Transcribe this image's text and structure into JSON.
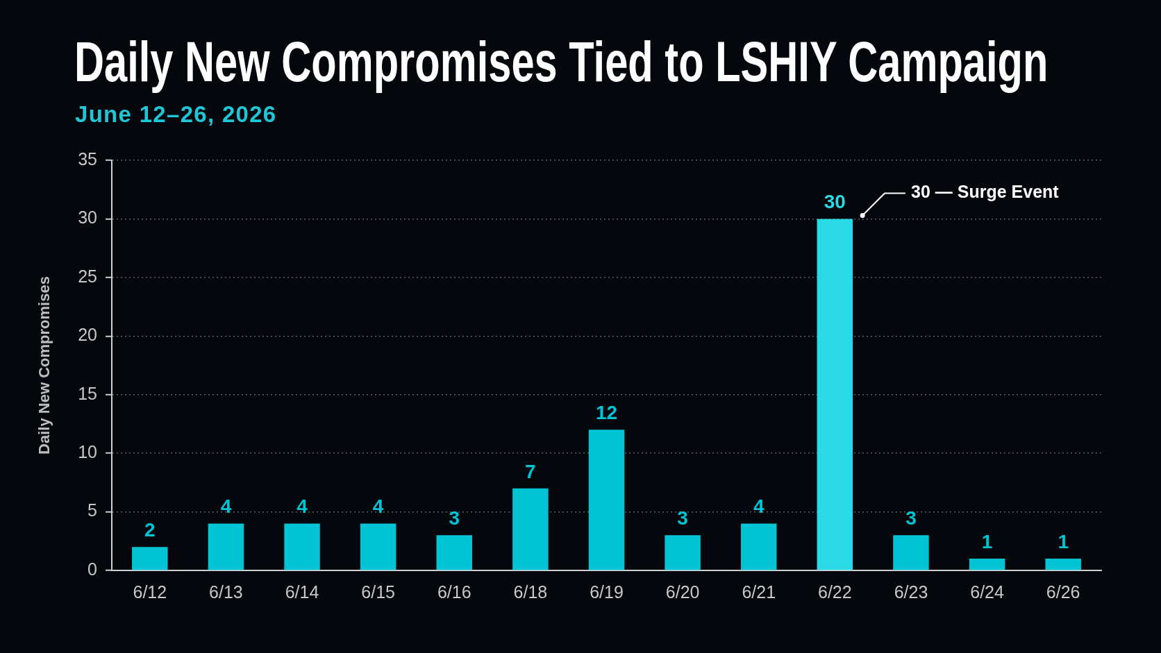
{
  "chart_data": {
    "type": "bar",
    "title": "Daily New Compromises Tied to LSHIY Campaign",
    "subtitle": "June 12–26, 2026",
    "ylabel": "Daily New Compromises",
    "categories": [
      "6/12",
      "6/13",
      "6/14",
      "6/15",
      "6/16",
      "6/18",
      "6/19",
      "6/20",
      "6/21",
      "6/22",
      "6/23",
      "6/24",
      "6/26"
    ],
    "values": [
      2,
      4,
      4,
      4,
      3,
      7,
      12,
      3,
      4,
      30,
      3,
      1,
      1
    ],
    "colors": [
      "#00c4d4",
      "#00c4d4",
      "#00c4d4",
      "#00c4d4",
      "#00c4d4",
      "#00c4d4",
      "#00c4d4",
      "#00c4d4",
      "#00c4d4",
      "#2ad9e6",
      "#00c4d4",
      "#00c4d4",
      "#00c4d4"
    ],
    "ylim": [
      0,
      35
    ],
    "yticks": [
      0,
      5,
      10,
      15,
      20,
      25,
      30,
      35
    ],
    "grid": "y",
    "data_labels": true,
    "annotations": [
      "30 — Surge Event"
    ]
  }
}
